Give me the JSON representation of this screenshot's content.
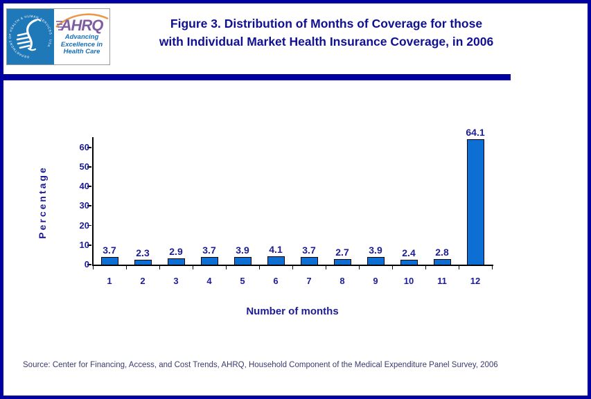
{
  "page": {
    "background": "#ffffff",
    "border_color": "#0000a0"
  },
  "header": {
    "title_line1": "Figure 3. Distribution of Months of Coverage for those",
    "title_line2": "with Individual Market Health Insurance Coverage, in 2006",
    "title_color": "#101092"
  },
  "logo": {
    "seal_text": "DEPARTMENT OF HEALTH & HUMAN SERVICES · USA",
    "brand": "AHRQ",
    "tagline_line1": "Advancing",
    "tagline_line2": "Excellence in",
    "tagline_line3": "Health Care",
    "colors": {
      "hhs_blue": "#1f78b8",
      "brand_purple": "#7e5da2",
      "swoosh_orange": "#e89a4a",
      "tagline_blue": "#176fb8"
    }
  },
  "chart_data": {
    "type": "bar",
    "title": "Figure 3. Distribution of Months of Coverage for those with Individual Market Health Insurance Coverage, in 2006",
    "categories": [
      "1",
      "2",
      "3",
      "4",
      "5",
      "6",
      "7",
      "8",
      "9",
      "10",
      "11",
      "12"
    ],
    "values": [
      3.7,
      2.3,
      2.9,
      3.7,
      3.9,
      4.1,
      3.7,
      2.7,
      3.9,
      2.4,
      2.8,
      64.1
    ],
    "xlabel": "Number of months",
    "ylabel": "Percentage",
    "ylim": [
      0,
      65
    ],
    "yticks": [
      0,
      10,
      20,
      30,
      40,
      50,
      60
    ],
    "grid": false,
    "legend": false,
    "colors": {
      "bar_fill": "#0d6fd4",
      "bar_border": "#000000",
      "axis": "#000000",
      "label": "#1c1c96"
    }
  },
  "footer": {
    "source": "Source: Center for Financing, Access, and Cost Trends, AHRQ, Household Component of the Medical Expenditure Panel Survey, 2006"
  }
}
